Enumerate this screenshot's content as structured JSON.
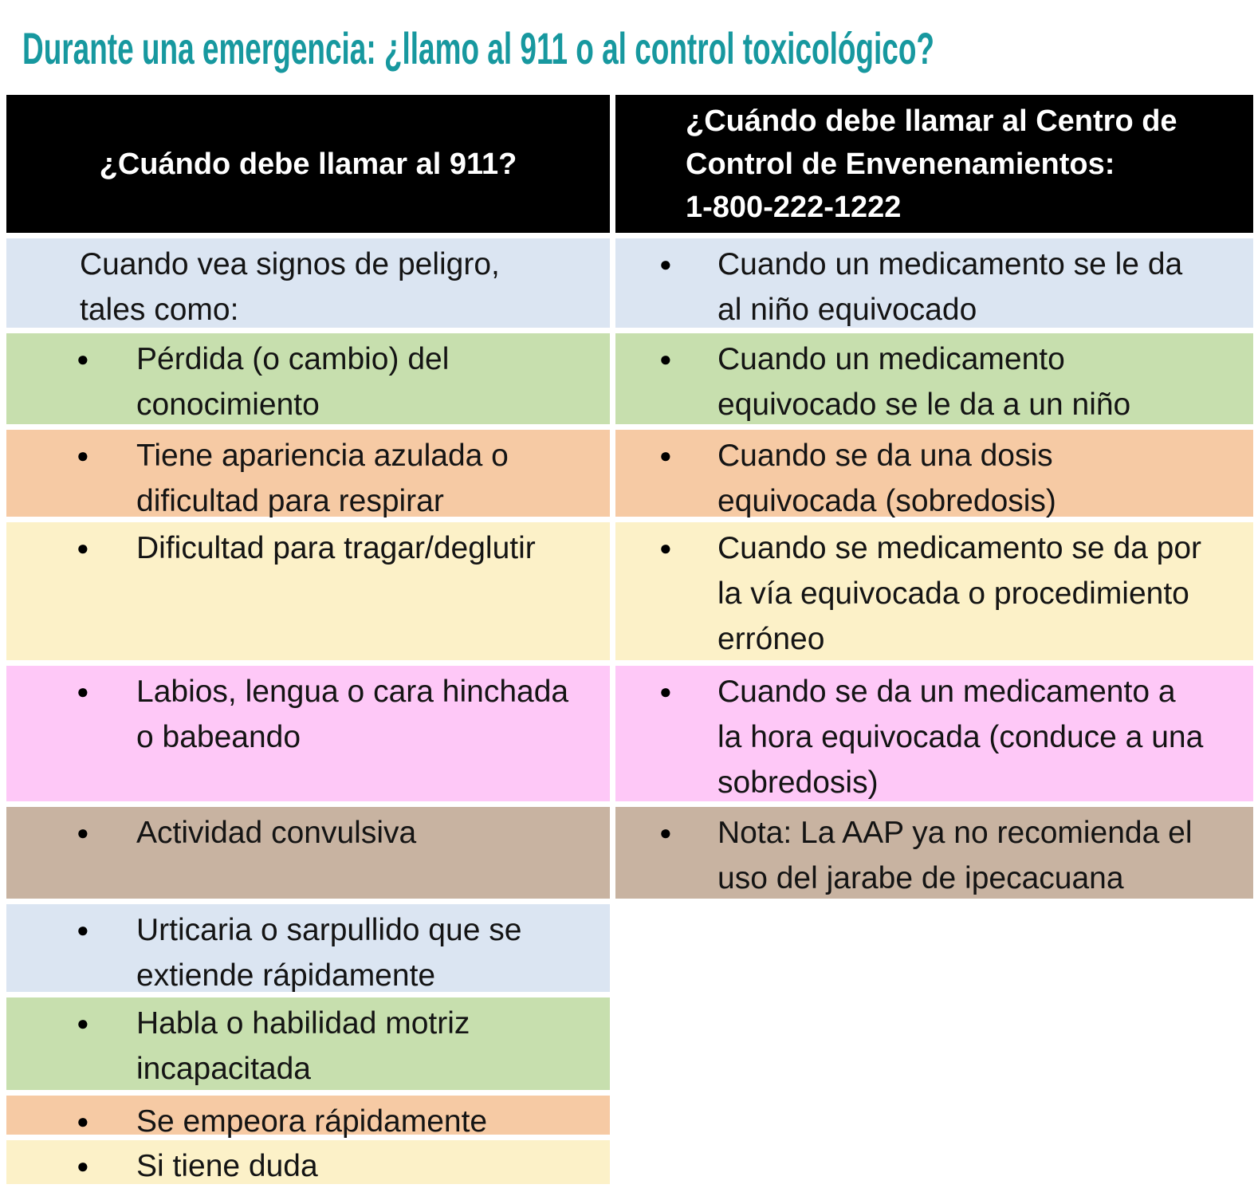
{
  "title": "Durante una emergencia: ¿llamo al 911 o al control toxicológico?",
  "icons": {
    "bullet": "●"
  },
  "colors": {
    "title_teal": "#17989f",
    "header_bg": "#000000",
    "header_text": "#ffffff",
    "body_text": "#141414",
    "row_blue": "#dbe5f2",
    "row_green": "#c7dfae",
    "row_orange": "#f6caa4",
    "row_yellow": "#fcf1c8",
    "row_pink": "#fec8f7",
    "row_tan": "#c8b3a1"
  },
  "table": {
    "header_left": "¿Cuándo debe llamar al 911?",
    "header_right": "¿Cuándo debe llamar al Centro de\nControl de Envenenamientos:\n1-800-222-1222",
    "rows": [
      {
        "color": "blue",
        "left": {
          "bullet": false,
          "text": "Cuando vea signos de peligro,\ntales como:"
        },
        "right": {
          "bullet": true,
          "text": "Cuando un medicamento se le da\nal niño equivocado"
        }
      },
      {
        "color": "green",
        "left": {
          "bullet": true,
          "text": "Pérdida (o cambio) del\nconocimiento"
        },
        "right": {
          "bullet": true,
          "text": "Cuando un medicamento\nequivocado se le da a un niño"
        }
      },
      {
        "color": "orange",
        "left": {
          "bullet": true,
          "text": "Tiene apariencia azulada o\ndificultad para respirar"
        },
        "right": {
          "bullet": true,
          "text": "Cuando se da una dosis\nequivocada (sobredosis)"
        }
      },
      {
        "color": "yellow",
        "left": {
          "bullet": true,
          "text": "Dificultad para tragar/deglutir"
        },
        "right": {
          "bullet": true,
          "text": "Cuando se medicamento se da por\nla vía equivocada o procedimiento\nerróneo"
        }
      },
      {
        "color": "pink",
        "left": {
          "bullet": true,
          "text": "Labios, lengua o cara hinchada\no babeando"
        },
        "right": {
          "bullet": true,
          "text": "Cuando se da un medicamento a\nla hora equivocada (conduce a una\nsobredosis)"
        }
      },
      {
        "color": "tan",
        "left": {
          "bullet": true,
          "text": "Actividad convulsiva"
        },
        "right": {
          "bullet": true,
          "text": "Nota: La AAP ya no recomienda el\nuso del jarabe de ipecacuana"
        }
      },
      {
        "color": "blue",
        "left": {
          "bullet": true,
          "text": "Urticaria o sarpullido que se\nextiende rápidamente"
        },
        "right": null
      },
      {
        "color": "green",
        "left": {
          "bullet": true,
          "text": "Habla o habilidad motriz\nincapacitada"
        },
        "right": null
      },
      {
        "color": "orange",
        "left": {
          "bullet": true,
          "text": "Se empeora rápidamente"
        },
        "right": null
      },
      {
        "color": "yellow",
        "left": {
          "bullet": true,
          "text": "Si tiene duda"
        },
        "right": null
      }
    ]
  }
}
